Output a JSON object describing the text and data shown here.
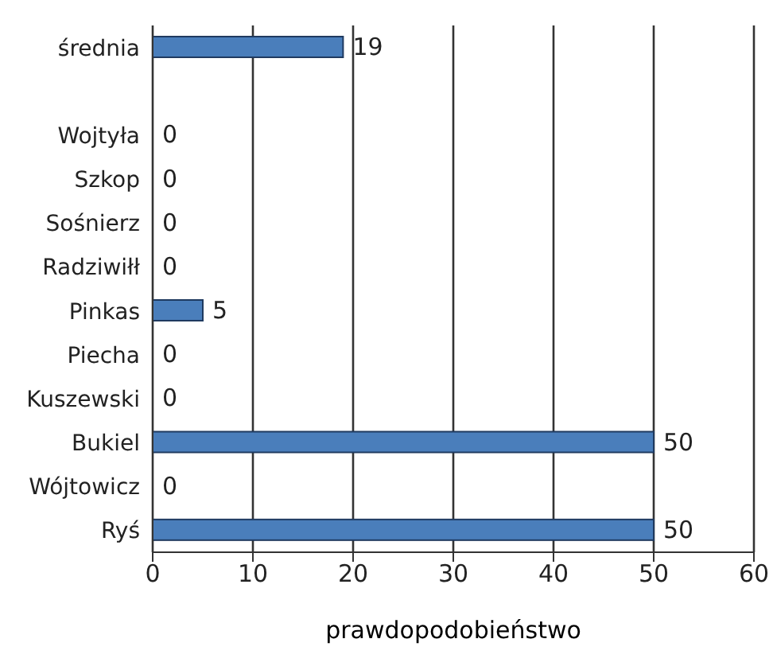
{
  "chart_data": {
    "type": "bar",
    "orientation": "horizontal",
    "xlabel": "prawdopodobieństwo",
    "categories": [
      "średnia",
      null,
      "Wojtyła",
      "Szkop",
      "Sośnierz",
      "Radziwiłł",
      "Pinkas",
      "Piecha",
      "Kuszewski",
      "Bukiel",
      "Wójtowicz",
      "Ryś"
    ],
    "values": [
      19,
      null,
      0,
      0,
      0,
      0,
      5,
      0,
      0,
      50,
      0,
      50
    ],
    "color": "#4a7ebb",
    "xlim": [
      0,
      60
    ],
    "xticks": [
      0,
      10,
      20,
      30,
      40,
      50,
      60
    ],
    "grid": "x",
    "data_labels": true,
    "legend": false
  }
}
